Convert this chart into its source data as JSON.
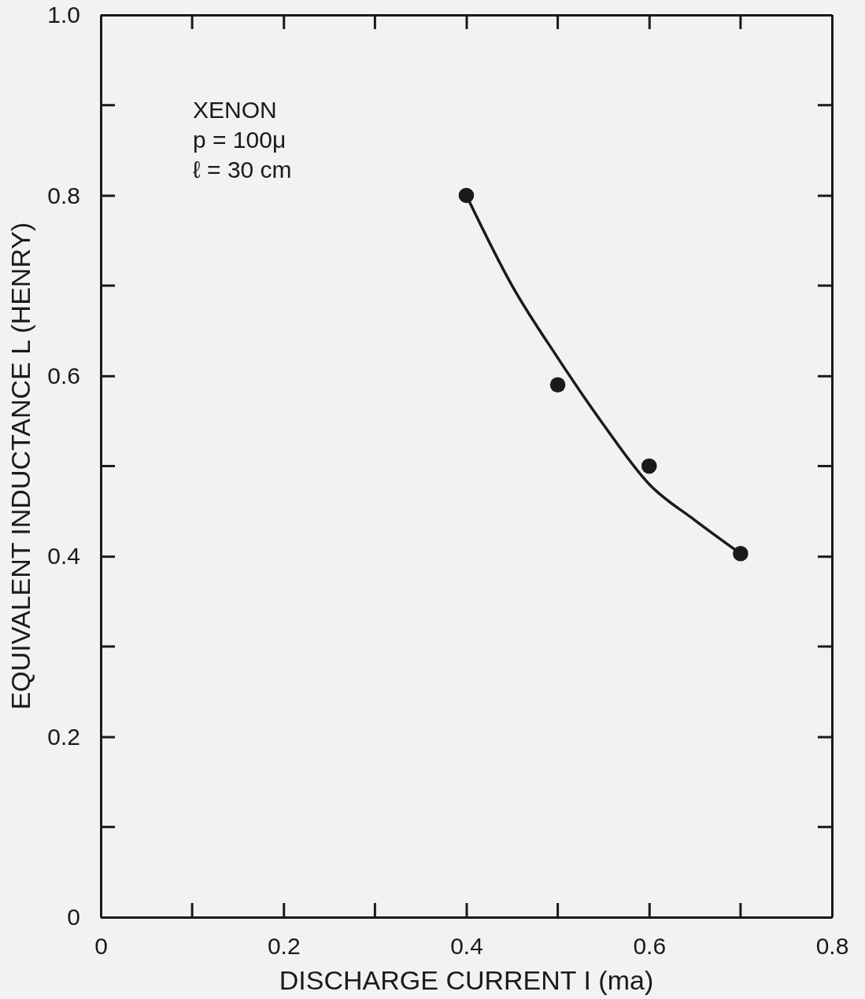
{
  "chart_data": {
    "type": "scatter",
    "xlabel": "DISCHARGE CURRENT I (ma)",
    "ylabel": "EQUIVALENT INDUCTANCE L (HENRY)",
    "annotations": [
      "XENON",
      "p = 100μ",
      "ℓ = 30 cm"
    ],
    "xlim": [
      0,
      0.8
    ],
    "ylim": [
      0,
      1
    ],
    "xticks": [
      0,
      0.2,
      0.4,
      0.6,
      0.8
    ],
    "yticks": [
      0,
      0.2,
      0.4,
      0.6,
      0.8,
      {
        "value": 1,
        "label": "1.0"
      }
    ],
    "grid": false,
    "marker": "circle",
    "series": [
      {
        "type": "scatter",
        "color": "#1a1a1a",
        "x": [
          0.4,
          0.5,
          0.6,
          0.7
        ],
        "values": [
          0.8,
          0.59,
          0.5,
          0.403
        ]
      },
      {
        "type": "line",
        "color": "#1a1a1a",
        "line_style": "solid",
        "marker": "none",
        "x": [
          0.4,
          0.45,
          0.5,
          0.55,
          0.6,
          0.65,
          0.7
        ],
        "values": [
          0.8,
          0.7,
          0.62,
          0.546,
          0.48,
          0.44,
          0.403
        ]
      }
    ]
  }
}
